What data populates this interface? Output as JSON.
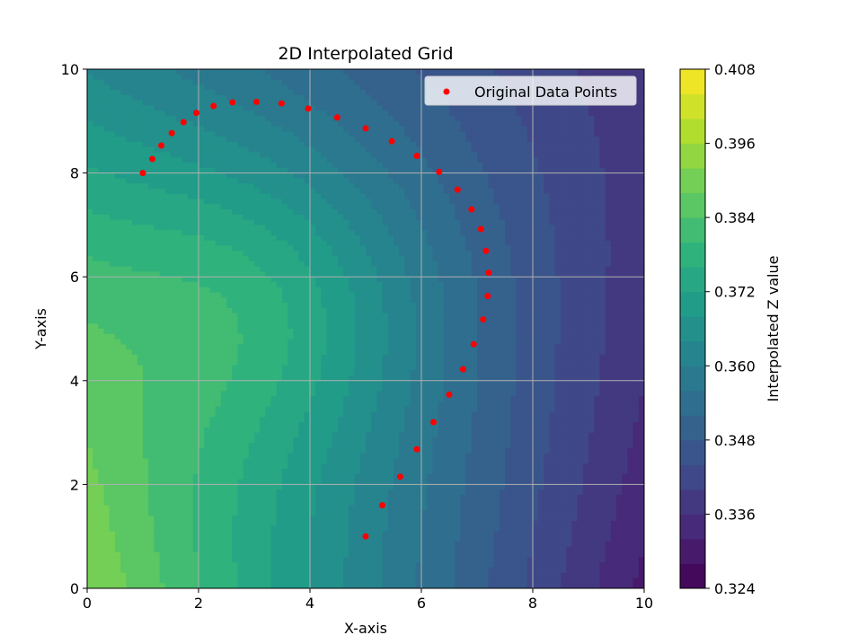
{
  "chart_data": {
    "type": "contour",
    "title": "2D Interpolated Grid",
    "xlabel": "X-axis",
    "ylabel": "Y-axis",
    "xlim": [
      0,
      10
    ],
    "ylim": [
      0,
      10
    ],
    "x_ticks": [
      "0",
      "2",
      "4",
      "6",
      "8",
      "10"
    ],
    "y_ticks": [
      "0",
      "2",
      "4",
      "6",
      "8",
      "10"
    ],
    "grid": true,
    "legend": {
      "position": "top-right",
      "entries": [
        "Original Data Points"
      ]
    },
    "series": [
      {
        "name": "Original Data Points",
        "type": "scatter",
        "color": "#ff0000",
        "points": [
          [
            1.0,
            8.0
          ],
          [
            1.17,
            8.27
          ],
          [
            1.33,
            8.53
          ],
          [
            1.52,
            8.77
          ],
          [
            1.73,
            8.98
          ],
          [
            1.96,
            9.16
          ],
          [
            2.27,
            9.29
          ],
          [
            2.61,
            9.36
          ],
          [
            3.04,
            9.37
          ],
          [
            3.49,
            9.34
          ],
          [
            3.97,
            9.24
          ],
          [
            4.49,
            9.07
          ],
          [
            5.0,
            8.86
          ],
          [
            5.47,
            8.61
          ],
          [
            5.92,
            8.33
          ],
          [
            6.32,
            8.02
          ],
          [
            6.65,
            7.68
          ],
          [
            6.9,
            7.3
          ],
          [
            7.07,
            6.92
          ],
          [
            7.16,
            6.5
          ],
          [
            7.21,
            6.08
          ],
          [
            7.19,
            5.63
          ],
          [
            7.11,
            5.18
          ],
          [
            6.94,
            4.7
          ],
          [
            6.75,
            4.22
          ],
          [
            6.5,
            3.73
          ],
          [
            6.22,
            3.2
          ],
          [
            5.92,
            2.68
          ],
          [
            5.62,
            2.15
          ],
          [
            5.3,
            1.6
          ],
          [
            5.0,
            1.0
          ]
        ]
      }
    ],
    "colorbar": {
      "label": "Interpolated Z value",
      "colormap": "viridis",
      "min": 0.324,
      "max": 0.408,
      "ticks": [
        "0.408",
        "0.396",
        "0.384",
        "0.372",
        "0.360",
        "0.348",
        "0.336",
        "0.324"
      ]
    }
  }
}
